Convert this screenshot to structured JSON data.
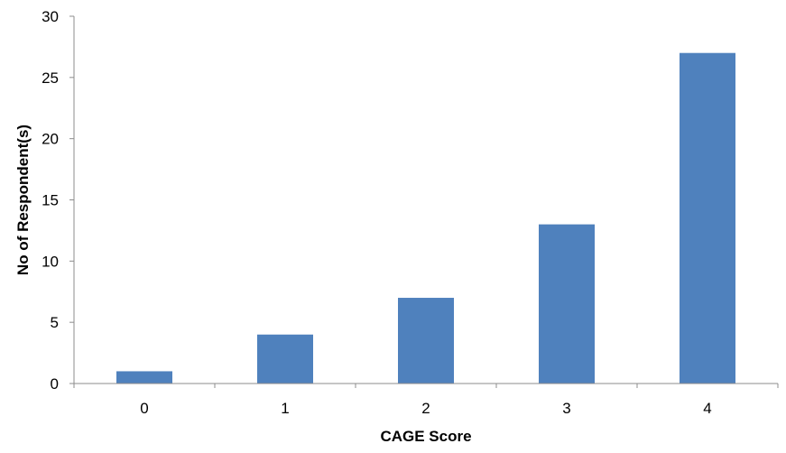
{
  "chart_data": {
    "type": "bar",
    "categories": [
      "0",
      "1",
      "2",
      "3",
      "4"
    ],
    "values": [
      1,
      4,
      7,
      13,
      27
    ],
    "title": "",
    "xlabel": "CAGE Score",
    "ylabel": "No of Respondent(s)",
    "ylim": [
      0,
      30
    ],
    "yticks": [
      "0",
      "5",
      "10",
      "15",
      "20",
      "25",
      "30"
    ],
    "grid": false,
    "legend": "none",
    "bar_color": "#4f81bd"
  }
}
